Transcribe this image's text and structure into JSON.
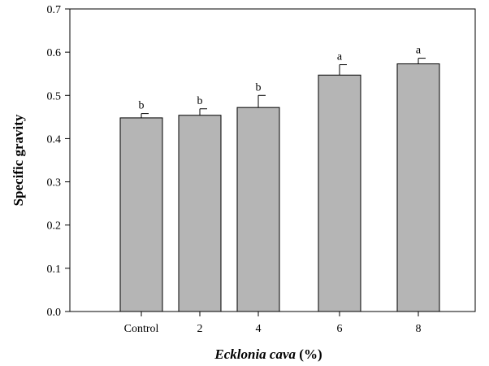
{
  "chart_data": {
    "type": "bar",
    "title": "",
    "xlabel_italic": "Ecklonia cava",
    "xlabel_unit": " (%)",
    "ylabel": "Specific gravity",
    "ylim": [
      0,
      0.7
    ],
    "yticks": [
      "0.0",
      "0.1",
      "0.2",
      "0.3",
      "0.4",
      "0.5",
      "0.6",
      "0.7"
    ],
    "categories": [
      "Control",
      "2",
      "4",
      "6",
      "8"
    ],
    "values": [
      0.448,
      0.454,
      0.472,
      0.547,
      0.573
    ],
    "errors": [
      0.01,
      0.015,
      0.028,
      0.024,
      0.013
    ],
    "significance": [
      "b",
      "b",
      "b",
      "a",
      "a"
    ],
    "bar_color": "#b5b5b5",
    "grid": false
  }
}
